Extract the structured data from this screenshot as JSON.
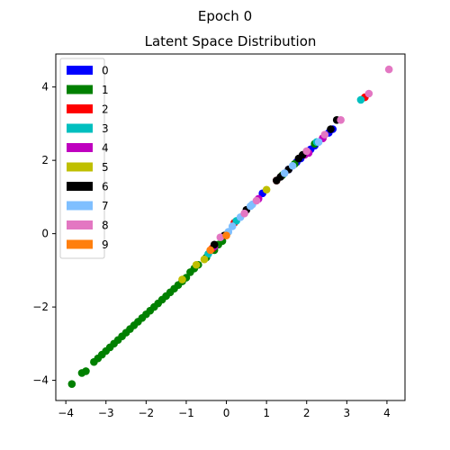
{
  "chart_data": {
    "type": "scatter",
    "suptitle": "Epoch 0",
    "title": "Latent Space Distribution",
    "xlabel": "",
    "ylabel": "",
    "xlim": [
      -4.25,
      4.45
    ],
    "ylim": [
      -4.55,
      4.9
    ],
    "xticks": [
      -4,
      -3,
      -2,
      -1,
      0,
      1,
      2,
      3,
      4
    ],
    "yticks": [
      -4,
      -2,
      0,
      2,
      4
    ],
    "grid": false,
    "legend_position": "upper-left",
    "series": [
      {
        "name": "0",
        "color": "#0000ff",
        "points": [
          [
            1.75,
            1.95
          ],
          [
            1.85,
            2.05
          ],
          [
            2.1,
            2.3
          ],
          [
            2.2,
            2.4
          ],
          [
            2.55,
            2.75
          ],
          [
            2.65,
            2.85
          ],
          [
            0.9,
            1.1
          ],
          [
            1.55,
            1.75
          ]
        ]
      },
      {
        "name": "1",
        "color": "#008000",
        "points": [
          [
            -3.85,
            -4.1
          ],
          [
            -3.6,
            -3.8
          ],
          [
            -3.5,
            -3.75
          ],
          [
            -3.3,
            -3.5
          ],
          [
            -3.2,
            -3.4
          ],
          [
            -3.1,
            -3.3
          ],
          [
            -3.0,
            -3.2
          ],
          [
            -2.9,
            -3.1
          ],
          [
            -2.8,
            -3.0
          ],
          [
            -2.7,
            -2.9
          ],
          [
            -2.6,
            -2.8
          ],
          [
            -2.5,
            -2.7
          ],
          [
            -2.4,
            -2.6
          ],
          [
            -2.3,
            -2.5
          ],
          [
            -2.2,
            -2.4
          ],
          [
            -2.1,
            -2.3
          ],
          [
            -2.0,
            -2.2
          ],
          [
            -1.9,
            -2.1
          ],
          [
            -1.8,
            -2.0
          ],
          [
            -1.7,
            -1.9
          ],
          [
            -1.6,
            -1.8
          ],
          [
            -1.5,
            -1.7
          ],
          [
            -1.4,
            -1.6
          ],
          [
            -1.3,
            -1.5
          ],
          [
            -1.2,
            -1.4
          ],
          [
            -1.1,
            -1.3
          ],
          [
            -1.0,
            -1.2
          ],
          [
            -0.9,
            -1.05
          ],
          [
            -0.8,
            -0.95
          ],
          [
            -0.7,
            -0.85
          ],
          [
            -0.5,
            -0.65
          ],
          [
            -0.3,
            -0.45
          ],
          [
            -0.2,
            -0.3
          ],
          [
            -0.1,
            -0.2
          ],
          [
            2.2,
            2.45
          ],
          [
            1.7,
            1.9
          ],
          [
            1.4,
            1.6
          ]
        ]
      },
      {
        "name": "2",
        "color": "#ff0000",
        "points": [
          [
            -0.35,
            -0.4
          ],
          [
            0.2,
            0.3
          ],
          [
            1.25,
            1.45
          ],
          [
            2.4,
            2.6
          ],
          [
            3.45,
            3.72
          ]
        ]
      },
      {
        "name": "3",
        "color": "#00bfbf",
        "points": [
          [
            3.35,
            3.65
          ],
          [
            2.25,
            2.5
          ],
          [
            0.25,
            0.35
          ],
          [
            -0.45,
            -0.55
          ]
        ]
      },
      {
        "name": "4",
        "color": "#bf00bf",
        "points": [
          [
            0.8,
            0.95
          ],
          [
            2.4,
            2.6
          ],
          [
            -0.3,
            -0.35
          ],
          [
            1.95,
            2.15
          ],
          [
            2.05,
            2.2
          ]
        ]
      },
      {
        "name": "5",
        "color": "#bfbf00",
        "points": [
          [
            -0.75,
            -0.85
          ],
          [
            1.0,
            1.2
          ],
          [
            -0.55,
            -0.7
          ],
          [
            -1.1,
            -1.25
          ]
        ]
      },
      {
        "name": "6",
        "color": "#000000",
        "points": [
          [
            2.75,
            3.1
          ],
          [
            -0.05,
            -0.05
          ],
          [
            -0.3,
            -0.3
          ],
          [
            1.35,
            1.55
          ],
          [
            1.55,
            1.75
          ],
          [
            1.8,
            2.05
          ],
          [
            1.9,
            2.15
          ],
          [
            2.6,
            2.85
          ],
          [
            0.5,
            0.65
          ],
          [
            1.25,
            1.45
          ]
        ]
      },
      {
        "name": "7",
        "color": "#7fbfff",
        "points": [
          [
            0.05,
            0.05
          ],
          [
            0.6,
            0.75
          ],
          [
            0.35,
            0.45
          ],
          [
            0.15,
            0.2
          ],
          [
            1.45,
            1.65
          ],
          [
            1.65,
            1.85
          ],
          [
            2.3,
            2.5
          ],
          [
            0.65,
            0.8
          ]
        ]
      },
      {
        "name": "8",
        "color": "#e377c2",
        "points": [
          [
            4.05,
            4.48
          ],
          [
            3.55,
            3.82
          ],
          [
            2.85,
            3.1
          ],
          [
            2.45,
            2.7
          ],
          [
            2.0,
            2.25
          ],
          [
            0.75,
            0.9
          ],
          [
            -0.15,
            -0.1
          ],
          [
            0.45,
            0.55
          ]
        ]
      },
      {
        "name": "9",
        "color": "#ff7f0e",
        "points": [
          [
            0.0,
            -0.05
          ],
          [
            -0.4,
            -0.45
          ]
        ]
      }
    ]
  }
}
